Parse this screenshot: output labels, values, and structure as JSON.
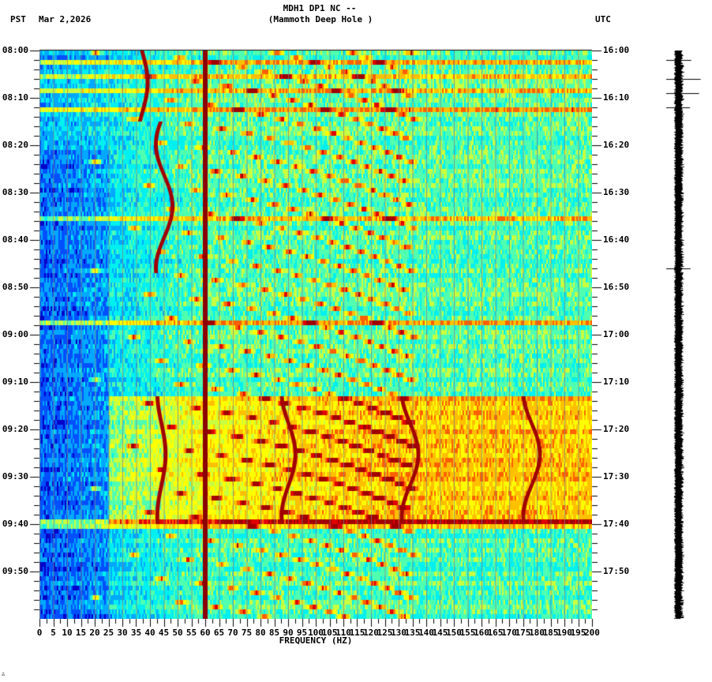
{
  "header": {
    "title_line1": "MDH1 DP1 NC --",
    "title_line2": "(Mammoth Deep Hole )",
    "left_timezone": "PST",
    "date": "Mar 2,2026",
    "right_timezone": "UTC"
  },
  "footer": {
    "mark": "∴"
  },
  "chart_data": {
    "type": "heatmap",
    "title": "MDH1 DP1 NC -- (Mammoth Deep Hole )",
    "subtitle": "Mar 2,2026",
    "xlabel": "FREQUENCY (HZ)",
    "ylabel_left": "PST",
    "ylabel_right": "UTC",
    "xlim": [
      0,
      200
    ],
    "x_ticks": [
      0,
      5,
      10,
      15,
      20,
      25,
      30,
      35,
      40,
      45,
      50,
      55,
      60,
      65,
      70,
      75,
      80,
      85,
      90,
      95,
      100,
      105,
      110,
      115,
      120,
      125,
      130,
      135,
      140,
      145,
      150,
      155,
      160,
      165,
      170,
      175,
      180,
      185,
      190,
      195,
      200
    ],
    "y_ticks_left": [
      "08:00",
      "08:10",
      "08:20",
      "08:30",
      "08:40",
      "08:50",
      "09:00",
      "09:10",
      "09:20",
      "09:30",
      "09:40",
      "09:50"
    ],
    "y_ticks_right": [
      "16:00",
      "16:10",
      "16:20",
      "16:30",
      "16:40",
      "16:50",
      "17:00",
      "17:10",
      "17:20",
      "17:30",
      "17:40",
      "17:50"
    ],
    "time_range_minutes": 120,
    "minor_tick_minutes": 2,
    "colormap": [
      "#0000c8",
      "#0050ff",
      "#00a8ff",
      "#00f0f0",
      "#50ffb0",
      "#c8ff40",
      "#ffff00",
      "#ffc000",
      "#ff6000",
      "#e00000",
      "#a00000"
    ],
    "features": {
      "constant_line_hz": 60,
      "narrow_grid_lines_every_hz": 5,
      "elevated_band": {
        "start_min": 73,
        "end_min": 100,
        "from_hz": 25,
        "to_hz": 200
      },
      "wandering_lines": [
        {
          "start_min": 73,
          "end_min": 100,
          "center_hz": 134,
          "amplitude_hz": 3
        },
        {
          "start_min": 73,
          "end_min": 100,
          "center_hz": 178,
          "amplitude_hz": 3
        },
        {
          "start_min": 73,
          "end_min": 100,
          "center_hz": 90,
          "amplitude_hz": 2.5
        },
        {
          "start_min": 73,
          "end_min": 100,
          "center_hz": 44,
          "amplitude_hz": 1.5
        },
        {
          "start_min": 15,
          "end_min": 47,
          "center_hz": 45,
          "amplitude_hz": 3
        },
        {
          "start_min": 0,
          "end_min": 15,
          "center_hz": 37,
          "amplitude_hz": 2
        }
      ],
      "horizontal_bands_min": [
        2,
        5,
        8,
        12,
        35,
        57,
        99,
        100
      ],
      "chirp_sweeps": "repeating curved sweeps rising in frequency from ~20 Hz to ~130 Hz over ~10 min, spaced every ~4-5 min"
    }
  },
  "trace": {
    "label": "seismogram-trace",
    "spike_minutes": [
      2,
      6,
      9,
      12,
      46
    ]
  }
}
